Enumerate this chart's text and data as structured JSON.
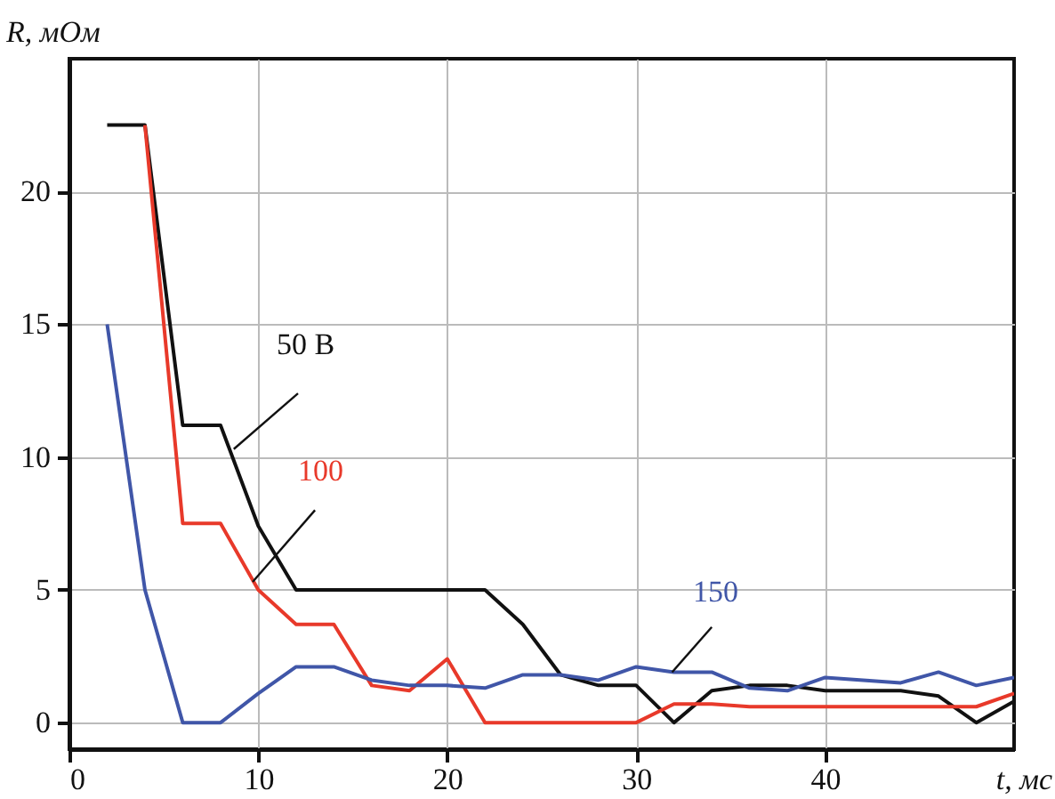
{
  "chart_data": {
    "type": "line",
    "xlabel": "t, мс",
    "ylabel": "R, мОм",
    "xlim": [
      0,
      50
    ],
    "xticks": [
      0,
      10,
      20,
      30,
      40
    ],
    "ylim": [
      -1,
      25
    ],
    "yticks": [
      0,
      5,
      10,
      15,
      20
    ],
    "grid": true,
    "series": [
      {
        "name": "50 В",
        "color": "#111111",
        "x": [
          2,
          4,
          6,
          8,
          10,
          12,
          14,
          16,
          18,
          20,
          22,
          24,
          26,
          28,
          30,
          32,
          34,
          36,
          38,
          40,
          42,
          44,
          46,
          48,
          50
        ],
        "values": [
          22.5,
          22.5,
          11.2,
          11.2,
          7.4,
          5,
          5,
          5,
          5,
          5,
          5,
          3.7,
          1.8,
          1.4,
          1.4,
          0,
          1.2,
          1.4,
          1.4,
          1.2,
          1.2,
          1.2,
          1,
          0,
          0.8
        ]
      },
      {
        "name": "100",
        "color": "#e8392a",
        "x": [
          4,
          6,
          8,
          10,
          12,
          14,
          16,
          18,
          20,
          22,
          24,
          26,
          28,
          30,
          32,
          34,
          36,
          38,
          40,
          42,
          44,
          46,
          48,
          50
        ],
        "values": [
          22.5,
          7.5,
          7.5,
          5,
          3.7,
          3.7,
          1.4,
          1.2,
          2.4,
          0,
          0,
          0,
          0,
          0,
          0.7,
          0.7,
          0.6,
          0.6,
          0.6,
          0.6,
          0.6,
          0.6,
          0.6,
          1.1
        ]
      },
      {
        "name": "150",
        "color": "#4056a8",
        "x": [
          2,
          4,
          6,
          8,
          10,
          12,
          14,
          16,
          18,
          20,
          22,
          24,
          26,
          28,
          30,
          32,
          34,
          36,
          38,
          40,
          42,
          44,
          46,
          48,
          50
        ],
        "values": [
          15,
          5,
          0,
          0,
          1.1,
          2.1,
          2.1,
          1.6,
          1.4,
          1.4,
          1.3,
          1.8,
          1.8,
          1.6,
          2.1,
          1.9,
          1.9,
          1.3,
          1.2,
          1.7,
          1.6,
          1.5,
          1.9,
          1.4,
          1.7
        ]
      }
    ]
  }
}
